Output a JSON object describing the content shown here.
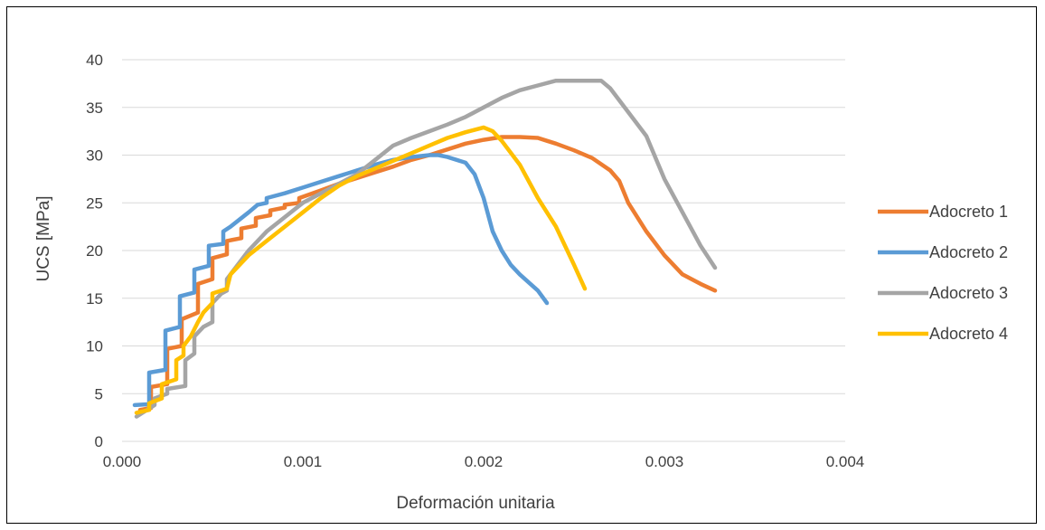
{
  "chart_data": {
    "type": "line",
    "xlabel": "Deformación unitaria",
    "ylabel": "UCS [MPa]",
    "xlim": [
      0,
      0.004
    ],
    "ylim": [
      0,
      40
    ],
    "xticks": [
      "0.000",
      "0.001",
      "0.002",
      "0.003",
      "0.004"
    ],
    "xtick_values": [
      0,
      0.001,
      0.002,
      0.003,
      0.004
    ],
    "yticks": [
      "0",
      "5",
      "10",
      "15",
      "20",
      "25",
      "30",
      "35",
      "40"
    ],
    "ytick_values": [
      0,
      5,
      10,
      15,
      20,
      25,
      30,
      35,
      40
    ],
    "grid": "horizontal",
    "legend_position": "right",
    "series": [
      {
        "name": "Adocreto 1",
        "color": "#ED7D31",
        "x": [
          0.0001,
          0.00016,
          0.00016,
          0.00025,
          0.00025,
          0.00033,
          0.00033,
          0.00042,
          0.00042,
          0.0005,
          0.0005,
          0.00058,
          0.00058,
          0.00066,
          0.00066,
          0.00074,
          0.00074,
          0.00082,
          0.00082,
          0.0009,
          0.0009,
          0.00098,
          0.00098,
          0.0011,
          0.0012,
          0.0013,
          0.0014,
          0.0015,
          0.0016,
          0.0017,
          0.0018,
          0.0019,
          0.002,
          0.0021,
          0.0022,
          0.0023,
          0.00235,
          0.0024,
          0.0025,
          0.0026,
          0.0027,
          0.00275,
          0.0028,
          0.0029,
          0.003,
          0.0031,
          0.0032,
          0.00328
        ],
        "y": [
          3.3,
          3.5,
          5.7,
          6.0,
          9.7,
          10.0,
          12.8,
          13.5,
          16.5,
          17.0,
          19.2,
          19.6,
          21.0,
          21.3,
          22.3,
          22.6,
          23.4,
          23.7,
          24.2,
          24.5,
          24.8,
          25.0,
          25.5,
          26.3,
          27.0,
          27.6,
          28.2,
          28.8,
          29.5,
          30.0,
          30.6,
          31.2,
          31.6,
          31.9,
          31.9,
          31.8,
          31.5,
          31.2,
          30.5,
          29.7,
          28.4,
          27.3,
          25.0,
          22.0,
          19.5,
          17.5,
          16.5,
          15.8
        ]
      },
      {
        "name": "Adocreto 2",
        "color": "#5B9BD5",
        "x": [
          7e-05,
          0.00015,
          0.00015,
          0.00024,
          0.00024,
          0.00032,
          0.00032,
          0.0004,
          0.0004,
          0.00048,
          0.00048,
          0.00056,
          0.00056,
          0.0006,
          0.0007,
          0.00075,
          0.0008,
          0.0008,
          0.0009,
          0.001,
          0.0011,
          0.0012,
          0.0013,
          0.0014,
          0.0015,
          0.0016,
          0.0017,
          0.00175,
          0.0018,
          0.0019,
          0.00195,
          0.002,
          0.00205,
          0.0021,
          0.00215,
          0.0022,
          0.0023,
          0.00235
        ],
        "y": [
          3.8,
          3.9,
          7.2,
          7.5,
          11.6,
          12.0,
          15.2,
          15.6,
          18.0,
          18.4,
          20.5,
          20.7,
          22.0,
          22.5,
          24.0,
          24.8,
          25.0,
          25.5,
          26.0,
          26.6,
          27.2,
          27.8,
          28.4,
          29.0,
          29.5,
          29.8,
          30.0,
          30.0,
          29.8,
          29.2,
          28.0,
          25.5,
          22.0,
          20.0,
          18.5,
          17.5,
          15.8,
          14.5
        ]
      },
      {
        "name": "Adocreto 3",
        "color": "#A5A5A5",
        "x": [
          8e-05,
          0.00018,
          0.00018,
          0.00025,
          0.00025,
          0.00035,
          0.00035,
          0.0004,
          0.0004,
          0.00045,
          0.0005,
          0.0005,
          0.00055,
          0.00058,
          0.00058,
          0.0007,
          0.0008,
          0.0009,
          0.001,
          0.0011,
          0.0012,
          0.0013,
          0.0014,
          0.0015,
          0.0016,
          0.0017,
          0.0018,
          0.0019,
          0.002,
          0.0021,
          0.0022,
          0.0023,
          0.0024,
          0.0025,
          0.00265,
          0.0027,
          0.0028,
          0.0029,
          0.003,
          0.0031,
          0.0032,
          0.00328
        ],
        "y": [
          2.6,
          3.8,
          4.5,
          5.0,
          5.5,
          5.8,
          8.5,
          9.2,
          11.0,
          12.0,
          12.5,
          14.5,
          15.5,
          15.8,
          17.0,
          20.0,
          22.0,
          23.5,
          25.0,
          26.0,
          27.0,
          28.0,
          29.5,
          31.0,
          31.8,
          32.5,
          33.2,
          34.0,
          35.0,
          36.0,
          36.8,
          37.3,
          37.8,
          37.8,
          37.8,
          37.0,
          34.5,
          32.0,
          27.5,
          24.0,
          20.5,
          18.2
        ]
      },
      {
        "name": "Adocreto 4",
        "color": "#FFC000",
        "x": [
          8e-05,
          0.00015,
          0.00015,
          0.00022,
          0.00022,
          0.0003,
          0.0003,
          0.00034,
          0.00034,
          0.00038,
          0.00042,
          0.00045,
          0.0005,
          0.0005,
          0.00058,
          0.0006,
          0.0007,
          0.0008,
          0.0009,
          0.001,
          0.0011,
          0.0012,
          0.0013,
          0.0014,
          0.0015,
          0.0016,
          0.0017,
          0.0018,
          0.0019,
          0.002,
          0.00205,
          0.0021,
          0.0022,
          0.0023,
          0.0024,
          0.0025,
          0.00256
        ],
        "y": [
          3.0,
          3.3,
          4.0,
          4.5,
          6.0,
          6.5,
          8.5,
          9.0,
          10.0,
          11.0,
          12.5,
          13.5,
          14.5,
          15.5,
          16.0,
          17.5,
          19.5,
          21.0,
          22.5,
          24.0,
          25.5,
          26.8,
          27.8,
          28.6,
          29.4,
          30.2,
          31.0,
          31.8,
          32.4,
          32.9,
          32.5,
          31.5,
          29.0,
          25.5,
          22.5,
          18.5,
          16.0
        ]
      }
    ]
  }
}
